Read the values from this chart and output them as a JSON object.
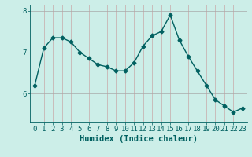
{
  "x": [
    0,
    1,
    2,
    3,
    4,
    5,
    6,
    7,
    8,
    9,
    10,
    11,
    12,
    13,
    14,
    15,
    16,
    17,
    18,
    19,
    20,
    21,
    22,
    23
  ],
  "y": [
    6.2,
    7.1,
    7.35,
    7.35,
    7.25,
    7.0,
    6.85,
    6.7,
    6.65,
    6.55,
    6.55,
    6.75,
    7.15,
    7.4,
    7.5,
    7.9,
    7.3,
    6.9,
    6.55,
    6.2,
    5.85,
    5.7,
    5.55,
    5.65
  ],
  "line_color": "#006060",
  "marker": "D",
  "marker_size": 2.5,
  "bg_color": "#cceee8",
  "vgrid_color": "#c8a8a8",
  "hgrid_color": "#a8a8a8",
  "xlabel": "Humidex (Indice chaleur)",
  "ylim": [
    5.3,
    8.15
  ],
  "xlim": [
    -0.5,
    23.5
  ],
  "yticks": [
    6,
    7,
    8
  ],
  "xticks": [
    0,
    1,
    2,
    3,
    4,
    5,
    6,
    7,
    8,
    9,
    10,
    11,
    12,
    13,
    14,
    15,
    16,
    17,
    18,
    19,
    20,
    21,
    22,
    23
  ],
  "axis_color": "#006060",
  "label_fontsize": 7.5,
  "tick_fontsize": 6.5
}
